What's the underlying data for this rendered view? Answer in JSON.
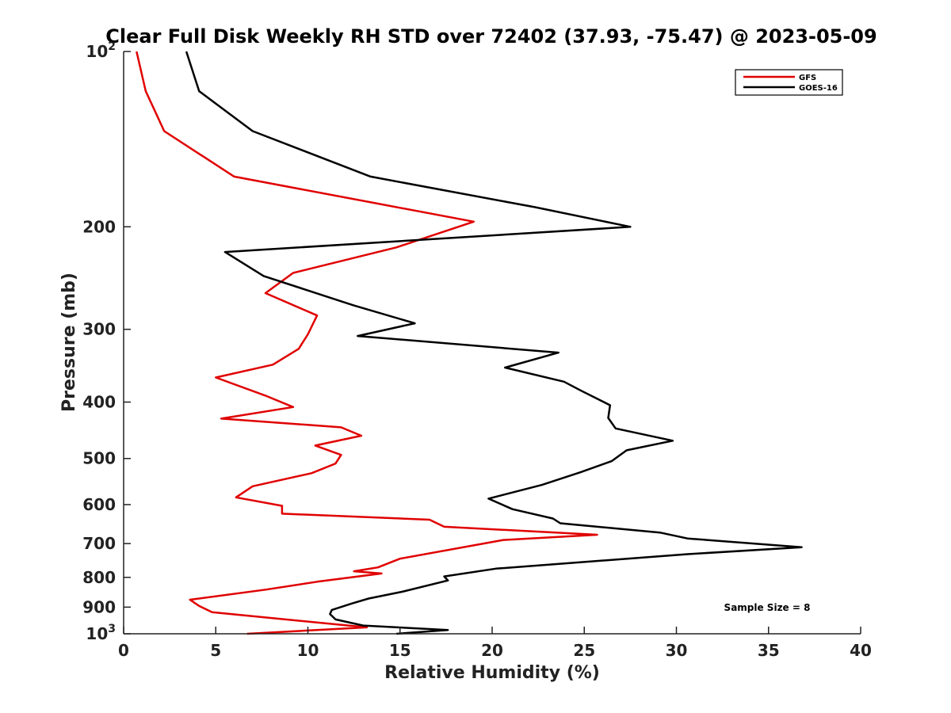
{
  "chart_data": {
    "type": "line",
    "title": "Clear Full Disk Weekly RH STD over 72402 (37.93, -75.47) @ 2023-05-09",
    "xlabel": "Relative Humidity (%)",
    "ylabel": "Pressure (mb)",
    "xlim": [
      0,
      40
    ],
    "ylim": [
      100,
      1000
    ],
    "yscale": "log",
    "yreversed": true,
    "grid": false,
    "legend_position": "top-right",
    "x_ticks": [
      0,
      5,
      10,
      15,
      20,
      25,
      30,
      35,
      40
    ],
    "x_tick_labels": [
      "0",
      "5",
      "10",
      "15",
      "20",
      "25",
      "30",
      "35",
      "40"
    ],
    "y_ticks": [
      200,
      300,
      400,
      500,
      600,
      700,
      800,
      900
    ],
    "y_tick_labels": [
      "200",
      "300",
      "400",
      "500",
      "600",
      "700",
      "800",
      "900"
    ],
    "y_ticks_exp": [
      {
        "value": 100,
        "base": "10",
        "exp": "2"
      },
      {
        "value": 1000,
        "base": "10",
        "exp": "3"
      }
    ],
    "annotation": "Sample Size = 8",
    "series": [
      {
        "name": "GFS",
        "color": "#e00000",
        "points": [
          [
            0.7,
            100
          ],
          [
            1.2,
            117
          ],
          [
            2.2,
            137
          ],
          [
            6.0,
            164
          ],
          [
            19.0,
            196
          ],
          [
            14.8,
            217
          ],
          [
            9.2,
            240
          ],
          [
            7.7,
            260
          ],
          [
            10.5,
            284
          ],
          [
            10.0,
            306
          ],
          [
            9.5,
            324
          ],
          [
            8.1,
            345
          ],
          [
            5.0,
            363
          ],
          [
            7.7,
            390
          ],
          [
            9.2,
            408
          ],
          [
            5.3,
            427
          ],
          [
            11.8,
            442
          ],
          [
            12.9,
            457
          ],
          [
            10.4,
            475
          ],
          [
            11.8,
            493
          ],
          [
            11.5,
            510
          ],
          [
            10.2,
            530
          ],
          [
            7.0,
            558
          ],
          [
            6.1,
            583
          ],
          [
            8.6,
            603
          ],
          [
            8.6,
            622
          ],
          [
            16.6,
            637
          ],
          [
            17.4,
            655
          ],
          [
            25.7,
            676
          ],
          [
            20.6,
            690
          ],
          [
            15.0,
            743
          ],
          [
            13.8,
            769
          ],
          [
            12.5,
            781
          ],
          [
            14.0,
            788
          ],
          [
            10.5,
            814
          ],
          [
            7.7,
            840
          ],
          [
            3.6,
            874
          ],
          [
            4.1,
            896
          ],
          [
            4.8,
            918
          ],
          [
            13.2,
            975
          ],
          [
            6.7,
            1000
          ]
        ]
      },
      {
        "name": "GOES-16",
        "color": "#000000",
        "points": [
          [
            3.4,
            100
          ],
          [
            4.1,
            117
          ],
          [
            7.0,
            137
          ],
          [
            13.4,
            164
          ],
          [
            22.3,
            185
          ],
          [
            27.5,
            200
          ],
          [
            5.5,
            221
          ],
          [
            7.6,
            243
          ],
          [
            12.5,
            273
          ],
          [
            15.8,
            293
          ],
          [
            12.7,
            308
          ],
          [
            23.6,
            329
          ],
          [
            20.7,
            349
          ],
          [
            23.9,
            369
          ],
          [
            24.8,
            382
          ],
          [
            26.4,
            405
          ],
          [
            26.3,
            426
          ],
          [
            26.7,
            444
          ],
          [
            29.8,
            466
          ],
          [
            27.3,
            484
          ],
          [
            26.5,
            505
          ],
          [
            24.8,
            528
          ],
          [
            22.7,
            555
          ],
          [
            19.8,
            586
          ],
          [
            21.1,
            611
          ],
          [
            23.3,
            634
          ],
          [
            23.7,
            646
          ],
          [
            29.1,
            670
          ],
          [
            30.6,
            686
          ],
          [
            36.8,
            710
          ],
          [
            30.6,
            730
          ],
          [
            20.2,
            773
          ],
          [
            17.4,
            797
          ],
          [
            17.6,
            810
          ],
          [
            15.1,
            847
          ],
          [
            13.3,
            870
          ],
          [
            12.4,
            887
          ],
          [
            11.3,
            910
          ],
          [
            11.2,
            925
          ],
          [
            11.5,
            945
          ],
          [
            13.0,
            968
          ],
          [
            17.6,
            985
          ],
          [
            14.8,
            1000
          ]
        ]
      }
    ]
  }
}
